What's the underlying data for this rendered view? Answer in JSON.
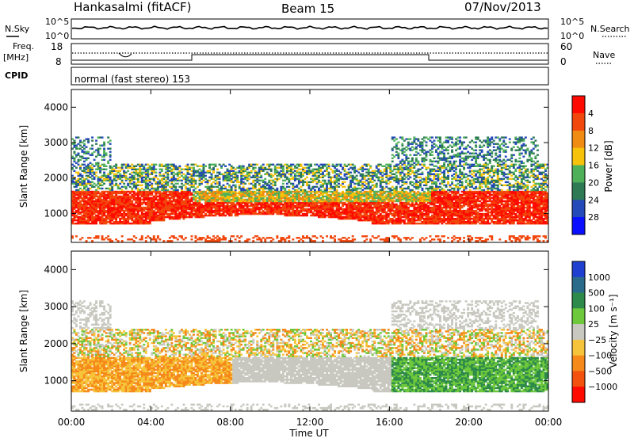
{
  "header": {
    "title": "Hankasalmi (fitACF)",
    "beam": "Beam 15",
    "date": "07/Nov/2013"
  },
  "top_panel": {
    "left_label": "N.Sky",
    "right_label": "N.Search",
    "left_ticks": [
      "10^5",
      "10^0"
    ],
    "right_ticks": [
      "10^5",
      "10^0"
    ]
  },
  "freq_panel": {
    "left_label_line1": "Freq.",
    "left_label_line2": "[MHz]",
    "right_label": "Nave",
    "left_ticks": [
      "18",
      "8"
    ],
    "right_ticks": [
      "60",
      "0"
    ]
  },
  "cpid": {
    "label": "CPID",
    "text": "normal (fast stereo) 153"
  },
  "chart_data": [
    {
      "type": "heatmap",
      "name": "power",
      "ylabel": "Slant Range [km]",
      "yticks": [
        1000,
        2000,
        3000,
        4000
      ],
      "ylim": [
        180,
        4500
      ],
      "xlim_hours": [
        0,
        24
      ],
      "colorbar": {
        "label": "Power [dB]",
        "tick_labels": [
          "4",
          "8",
          "12",
          "16",
          "20",
          "24",
          "28"
        ],
        "colors": [
          "#0a10ff",
          "#2449b8",
          "#2d7a55",
          "#4fb05a",
          "#f6c20a",
          "#f08c12",
          "#f2470c",
          "#ff0a00"
        ]
      }
    },
    {
      "type": "heatmap",
      "name": "velocity",
      "ylabel": "Slant Range [km]",
      "yticks": [
        1000,
        2000,
        3000,
        4000
      ],
      "ylim": [
        180,
        4500
      ],
      "xlim_hours": [
        0,
        24
      ],
      "xtick_labels": [
        "00:00",
        "04:00",
        "08:00",
        "12:00",
        "16:00",
        "20:00",
        "00:00"
      ],
      "xlabel": "Time UT",
      "colorbar": {
        "label": "Velocity [m s⁻¹]",
        "tick_labels": [
          "1000",
          "500",
          "100",
          "25",
          "−25",
          "−100",
          "−500",
          "−1000"
        ],
        "colors": [
          "#1f3fd0",
          "#2a6a8a",
          "#2d8a4a",
          "#6ec83c",
          "#c8c8c0",
          "#f6c43a",
          "#f5891a",
          "#f2520e",
          "#ff0a00"
        ]
      }
    }
  ]
}
